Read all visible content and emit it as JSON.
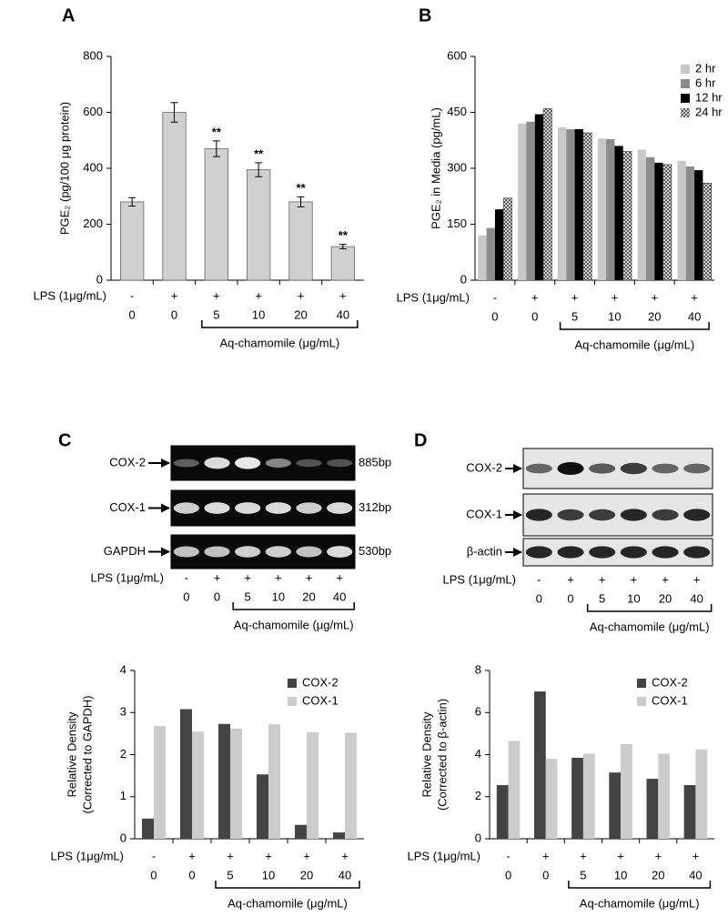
{
  "chart_data": [
    {
      "type": "bar",
      "panel": "A",
      "ylabel": [
        "PGE₂ (pg/100 μg protein)"
      ],
      "categories": [
        "0",
        "0",
        "5",
        "10",
        "20",
        "40"
      ],
      "lps": [
        "-",
        "+",
        "+",
        "+",
        "+",
        "+"
      ],
      "lps_label": "LPS (1μg/mL)",
      "bracket_label": "Aq-chamomile (μg/mL)",
      "values": [
        280,
        600,
        470,
        395,
        280,
        120
      ],
      "errors": [
        15,
        35,
        28,
        25,
        18,
        8
      ],
      "annotations": [
        null,
        null,
        "**",
        "**",
        "**",
        "**"
      ],
      "color": "#d0d0d0",
      "ylim": [
        0,
        800
      ],
      "yticks": [
        0,
        200,
        400,
        600,
        800
      ]
    },
    {
      "type": "bar",
      "panel": "B",
      "ylabel": [
        "PGE₂ in Media (pg/mL)"
      ],
      "categories": [
        "0",
        "0",
        "5",
        "10",
        "20",
        "40"
      ],
      "lps": [
        "-",
        "+",
        "+",
        "+",
        "+",
        "+"
      ],
      "lps_label": "LPS (1μg/mL)",
      "bracket_label": "Aq-chamomile (μg/mL)",
      "series": [
        {
          "name": "2 hr",
          "color": "#c8c8c8",
          "values": [
            120,
            420,
            410,
            380,
            350,
            320
          ]
        },
        {
          "name": "6 hr",
          "color": "#8c8c8c",
          "values": [
            140,
            425,
            405,
            378,
            330,
            305
          ]
        },
        {
          "name": "12 hr",
          "color": "#000000",
          "values": [
            190,
            445,
            405,
            360,
            315,
            295
          ]
        },
        {
          "name": "24 hr",
          "color": "#ffffff",
          "hatch": true,
          "values": [
            220,
            460,
            395,
            345,
            310,
            260
          ]
        }
      ],
      "legend": "upper right",
      "ylim": [
        0,
        600
      ],
      "yticks": [
        0,
        150,
        300,
        450,
        600
      ]
    },
    {
      "type": "bar",
      "ylabel": [
        "Relative Density",
        "(Corrected to GAPDH)"
      ],
      "categories": [
        "0",
        "0",
        "5",
        "10",
        "20",
        "40"
      ],
      "lps": [
        "-",
        "+",
        "+",
        "+",
        "+",
        "+"
      ],
      "lps_label": "LPS (1μg/mL)",
      "bracket_label": "Aq-chamomile (μg/mL)",
      "series": [
        {
          "name": "COX-2",
          "color": "#444444",
          "values": [
            0.48,
            3.08,
            2.73,
            1.53,
            0.33,
            0.15
          ]
        },
        {
          "name": "COX-1",
          "color": "#cccccc",
          "values": [
            2.68,
            2.55,
            2.62,
            2.72,
            2.53,
            2.52
          ]
        }
      ],
      "legend": "upper right",
      "ylim": [
        0,
        4
      ],
      "yticks": [
        0,
        1,
        2,
        3,
        4
      ]
    },
    {
      "type": "bar",
      "ylabel": [
        "Relative Density",
        "(Corrected to β-actin)"
      ],
      "categories": [
        "0",
        "0",
        "5",
        "10",
        "20",
        "40"
      ],
      "lps": [
        "-",
        "+",
        "+",
        "+",
        "+",
        "+"
      ],
      "lps_label": "LPS (1μg/mL)",
      "bracket_label": "Aq-chamomile (μg/mL)",
      "series": [
        {
          "name": "COX-2",
          "color": "#444444",
          "values": [
            2.55,
            7.0,
            3.85,
            3.15,
            2.85,
            2.55
          ]
        },
        {
          "name": "COX-1",
          "color": "#cccccc",
          "values": [
            4.65,
            3.8,
            4.05,
            4.5,
            4.05,
            4.25
          ]
        }
      ],
      "legend": "upper right",
      "ylim": [
        0,
        8
      ],
      "yticks": [
        0,
        2,
        4,
        6,
        8
      ]
    }
  ],
  "blots": [
    {
      "panel": "C",
      "rows": [
        {
          "label": "COX-2",
          "size": "885bp"
        },
        {
          "label": "COX-1",
          "size": "312bp"
        },
        {
          "label": "GAPDH",
          "size": "530bp"
        }
      ],
      "categories": [
        "0",
        "0",
        "5",
        "10",
        "20",
        "40"
      ],
      "lps": [
        "-",
        "+",
        "+",
        "+",
        "+",
        "+"
      ],
      "lps_label": "LPS (1μg/mL)",
      "bracket_label": "Aq-chamomile (μg/mL)"
    },
    {
      "panel": "D",
      "rows": [
        {
          "label": "COX-2"
        },
        {
          "label": "COX-1"
        },
        {
          "label": "β-actin"
        }
      ],
      "categories": [
        "0",
        "0",
        "5",
        "10",
        "20",
        "40"
      ],
      "lps": [
        "-",
        "+",
        "+",
        "+",
        "+",
        "+"
      ],
      "lps_label": "LPS (1μg/mL)",
      "bracket_label": "Aq-chamomile (μg/mL)"
    }
  ]
}
